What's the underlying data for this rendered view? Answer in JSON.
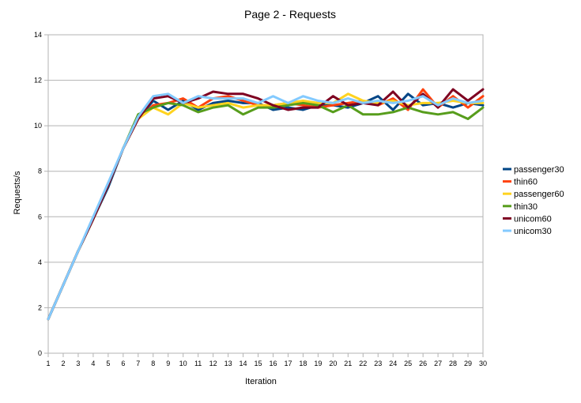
{
  "chart_data": {
    "type": "line",
    "title": "Page 2 - Requests",
    "xlabel": "Iteration",
    "ylabel": "Requests/s",
    "x": [
      1,
      2,
      3,
      4,
      5,
      6,
      7,
      8,
      9,
      10,
      11,
      12,
      13,
      14,
      15,
      16,
      17,
      18,
      19,
      20,
      21,
      22,
      23,
      24,
      25,
      26,
      27,
      28,
      29,
      30
    ],
    "ylim": [
      0,
      14
    ],
    "yticks": [
      0,
      2,
      4,
      6,
      8,
      10,
      12,
      14
    ],
    "grid": "horizontal",
    "legend_position": "right",
    "series": [
      {
        "name": "passenger30",
        "color": "#004586",
        "values": [
          1.5,
          3.0,
          4.5,
          5.9,
          7.3,
          9.0,
          10.3,
          11.1,
          10.7,
          11.1,
          10.7,
          11.0,
          11.1,
          11.0,
          11.0,
          10.7,
          10.8,
          10.7,
          10.9,
          10.9,
          10.8,
          11.0,
          11.3,
          10.7,
          11.4,
          10.9,
          11.0,
          10.8,
          11.0,
          10.9
        ]
      },
      {
        "name": "thin60",
        "color": "#ff420e",
        "values": [
          1.5,
          3.0,
          4.5,
          5.9,
          7.4,
          9.0,
          10.3,
          10.9,
          11.0,
          11.2,
          10.8,
          11.2,
          11.3,
          11.1,
          10.9,
          10.9,
          11.0,
          10.9,
          10.8,
          10.9,
          11.0,
          11.1,
          10.9,
          11.2,
          10.7,
          11.6,
          10.8,
          11.3,
          10.8,
          11.3
        ]
      },
      {
        "name": "passenger60",
        "color": "#ffd320",
        "values": [
          1.5,
          3.0,
          4.5,
          5.9,
          7.4,
          9.0,
          10.3,
          10.8,
          10.5,
          11.0,
          10.8,
          10.9,
          11.0,
          10.8,
          10.9,
          10.9,
          11.0,
          11.1,
          11.0,
          11.0,
          11.4,
          11.1,
          11.0,
          11.1,
          10.9,
          11.0,
          11.0,
          11.1,
          11.0,
          11.0
        ]
      },
      {
        "name": "thin30",
        "color": "#579d1c",
        "values": [
          1.5,
          3.0,
          4.5,
          5.9,
          7.4,
          9.0,
          10.5,
          10.8,
          11.0,
          10.9,
          10.6,
          10.8,
          10.9,
          10.5,
          10.8,
          10.8,
          10.9,
          11.0,
          10.9,
          10.6,
          10.9,
          10.5,
          10.5,
          10.6,
          10.8,
          10.6,
          10.5,
          10.6,
          10.3,
          10.8
        ]
      },
      {
        "name": "unicom60",
        "color": "#7e0021",
        "values": [
          1.5,
          3.0,
          4.5,
          5.9,
          7.4,
          9.0,
          10.3,
          11.2,
          11.3,
          11.0,
          11.2,
          11.5,
          11.4,
          11.4,
          11.2,
          10.9,
          10.7,
          10.8,
          10.8,
          11.3,
          10.9,
          11.0,
          10.9,
          11.5,
          10.8,
          11.4,
          10.8,
          11.6,
          11.1,
          11.6
        ]
      },
      {
        "name": "unicom30",
        "color": "#83caff",
        "values": [
          1.5,
          3.0,
          4.5,
          6.0,
          7.5,
          9.0,
          10.4,
          11.3,
          11.4,
          11.0,
          11.3,
          11.2,
          11.2,
          11.2,
          11.0,
          11.3,
          11.0,
          11.3,
          11.1,
          11.0,
          11.2,
          11.0,
          11.1,
          11.0,
          11.1,
          11.3,
          10.9,
          11.2,
          11.0,
          11.1
        ]
      }
    ]
  }
}
